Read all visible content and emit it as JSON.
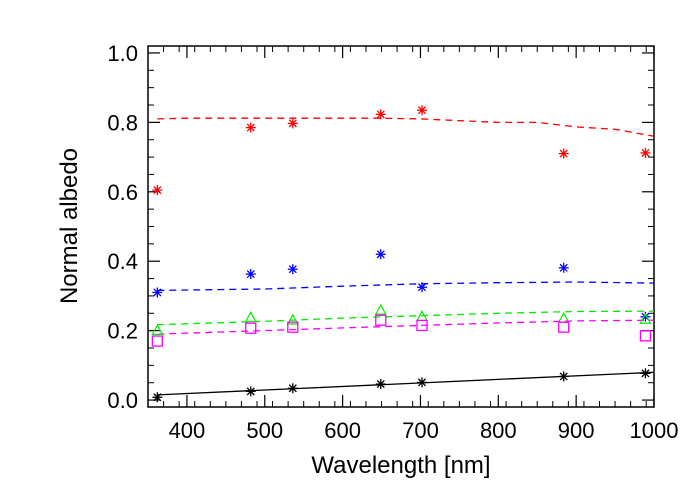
{
  "chart_data": {
    "type": "scatter",
    "title": "",
    "xlabel": "Wavelength [nm]",
    "ylabel": "Normal albedo",
    "xlim": [
      350,
      1000
    ],
    "ylim": [
      -0.02,
      1.02
    ],
    "xticks": [
      400,
      500,
      600,
      700,
      800,
      900,
      1000
    ],
    "xtick_labels": [
      "400",
      "500",
      "600",
      "700",
      "800",
      "900",
      "1000"
    ],
    "yticks": [
      0.0,
      0.2,
      0.4,
      0.6,
      0.8,
      1.0
    ],
    "ytick_labels": [
      "0.0",
      "0.2",
      "0.4",
      "0.6",
      "0.8",
      "1.0"
    ],
    "legend": "none",
    "series": [
      {
        "name": "red",
        "color": "#ff0000",
        "marker": "asterisk",
        "points": [
          [
            362,
            0.605
          ],
          [
            482,
            0.785
          ],
          [
            536,
            0.797
          ],
          [
            649,
            0.823
          ],
          [
            702,
            0.835
          ],
          [
            884,
            0.71
          ],
          [
            989,
            0.712
          ]
        ],
        "model": {
          "style": "dashed",
          "points": [
            [
              362,
              0.81
            ],
            [
              400,
              0.812
            ],
            [
              500,
              0.812
            ],
            [
              600,
              0.812
            ],
            [
              650,
              0.812
            ],
            [
              700,
              0.81
            ],
            [
              800,
              0.8
            ],
            [
              850,
              0.8
            ],
            [
              900,
              0.787
            ],
            [
              950,
              0.78
            ],
            [
              1000,
              0.76
            ]
          ]
        }
      },
      {
        "name": "blue",
        "color": "#0000ff",
        "marker": "asterisk",
        "points": [
          [
            362,
            0.31
          ],
          [
            482,
            0.363
          ],
          [
            536,
            0.377
          ],
          [
            649,
            0.42
          ],
          [
            702,
            0.325
          ],
          [
            884,
            0.381
          ],
          [
            989,
            0.24
          ]
        ],
        "model": {
          "style": "dashed",
          "points": [
            [
              362,
              0.316
            ],
            [
              500,
              0.32
            ],
            [
              600,
              0.328
            ],
            [
              700,
              0.335
            ],
            [
              800,
              0.338
            ],
            [
              900,
              0.34
            ],
            [
              1000,
              0.337
            ]
          ]
        }
      },
      {
        "name": "green",
        "color": "#00ee00",
        "marker": "triangle",
        "points": [
          [
            362,
            0.2
          ],
          [
            482,
            0.237
          ],
          [
            536,
            0.23
          ],
          [
            649,
            0.258
          ],
          [
            702,
            0.24
          ],
          [
            884,
            0.235
          ],
          [
            989,
            0.232
          ]
        ],
        "model": {
          "style": "dashed",
          "points": [
            [
              362,
              0.217
            ],
            [
              500,
              0.227
            ],
            [
              600,
              0.236
            ],
            [
              700,
              0.243
            ],
            [
              800,
              0.25
            ],
            [
              900,
              0.255
            ],
            [
              1000,
              0.256
            ]
          ]
        }
      },
      {
        "name": "magenta",
        "color": "#ff00ff",
        "marker": "square",
        "points": [
          [
            362,
            0.17
          ],
          [
            482,
            0.207
          ],
          [
            536,
            0.21
          ],
          [
            649,
            0.23
          ],
          [
            702,
            0.215
          ],
          [
            884,
            0.21
          ],
          [
            989,
            0.185
          ]
        ],
        "model": {
          "style": "dashed",
          "points": [
            [
              362,
              0.19
            ],
            [
              500,
              0.2
            ],
            [
              600,
              0.208
            ],
            [
              700,
              0.215
            ],
            [
              800,
              0.222
            ],
            [
              900,
              0.228
            ],
            [
              1000,
              0.23
            ]
          ]
        }
      },
      {
        "name": "black",
        "color": "#000000",
        "marker": "asterisk",
        "points": [
          [
            362,
            0.008
          ],
          [
            482,
            0.025
          ],
          [
            536,
            0.034
          ],
          [
            649,
            0.046
          ],
          [
            702,
            0.051
          ],
          [
            884,
            0.068
          ],
          [
            989,
            0.077
          ]
        ],
        "model": {
          "style": "solid",
          "points": [
            [
              362,
              0.015
            ],
            [
              1000,
              0.08
            ]
          ]
        }
      }
    ]
  }
}
